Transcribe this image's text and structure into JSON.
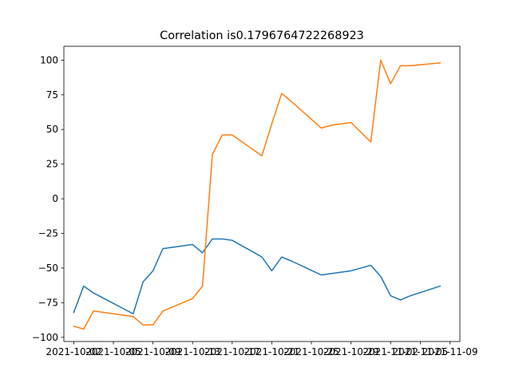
{
  "chart_data": {
    "type": "line",
    "title": "Correlation is0.1796764722268923",
    "xlabel": "",
    "ylabel": "",
    "x_axis_type": "date",
    "xlim": [
      "2021-10-01",
      "2021-11-10"
    ],
    "ylim": [
      -103,
      110
    ],
    "x_ticks": [
      "2021-10-02",
      "2021-10-06",
      "2021-10-10",
      "2021-10-14",
      "2021-10-18",
      "2021-10-22",
      "2021-10-26",
      "2021-10-30",
      "2021-11-03",
      "2021-11-06",
      "2021-11-09"
    ],
    "x_tick_labels": [
      "2021-10-02",
      "2021-10-05",
      "2021-10-09",
      "2021-10-13",
      "2021-10-17",
      "2021-10-21",
      "2021-10-25",
      "2021-10-29",
      "2021-11-02",
      "2021-11-05",
      "2021-11-09"
    ],
    "y_ticks": [
      -100,
      -75,
      -50,
      -25,
      0,
      25,
      50,
      75,
      100
    ],
    "y_tick_labels": [
      "−100",
      "−75",
      "−50",
      "−25",
      "0",
      "25",
      "50",
      "75",
      "100"
    ],
    "grid": false,
    "series": [
      {
        "color": "#1f77b4",
        "x": [
          "2021-10-02",
          "2021-10-03",
          "2021-10-04",
          "2021-10-08",
          "2021-10-09",
          "2021-10-10",
          "2021-10-11",
          "2021-10-14",
          "2021-10-15",
          "2021-10-16",
          "2021-10-17",
          "2021-10-18",
          "2021-10-21",
          "2021-10-22",
          "2021-10-23",
          "2021-10-24",
          "2021-10-27",
          "2021-10-28",
          "2021-10-29",
          "2021-10-30",
          "2021-11-01",
          "2021-11-02",
          "2021-11-03",
          "2021-11-04",
          "2021-11-05",
          "2021-11-08"
        ],
        "y": [
          -82,
          -63,
          -68,
          -83,
          -60,
          -52,
          -36,
          -33,
          -39,
          -29,
          -29,
          -30,
          -42,
          -52,
          -42,
          -45,
          -55,
          -54,
          -53,
          -52,
          -48,
          -56,
          -70,
          -73,
          -70,
          -63
        ]
      },
      {
        "color": "#ff7f0e",
        "x": [
          "2021-10-02",
          "2021-10-03",
          "2021-10-04",
          "2021-10-08",
          "2021-10-09",
          "2021-10-10",
          "2021-10-11",
          "2021-10-14",
          "2021-10-15",
          "2021-10-16",
          "2021-10-17",
          "2021-10-18",
          "2021-10-21",
          "2021-10-22",
          "2021-10-23",
          "2021-10-24",
          "2021-10-27",
          "2021-10-28",
          "2021-10-29",
          "2021-10-30",
          "2021-11-01",
          "2021-11-02",
          "2021-11-03",
          "2021-11-04",
          "2021-11-05",
          "2021-11-08"
        ],
        "y": [
          -92,
          -94,
          -81,
          -85,
          -91,
          -91,
          -81,
          -72,
          -63,
          32,
          46,
          46,
          31,
          54,
          76,
          70,
          51,
          53,
          54,
          55,
          41,
          100,
          83,
          96,
          96,
          98
        ]
      }
    ]
  }
}
